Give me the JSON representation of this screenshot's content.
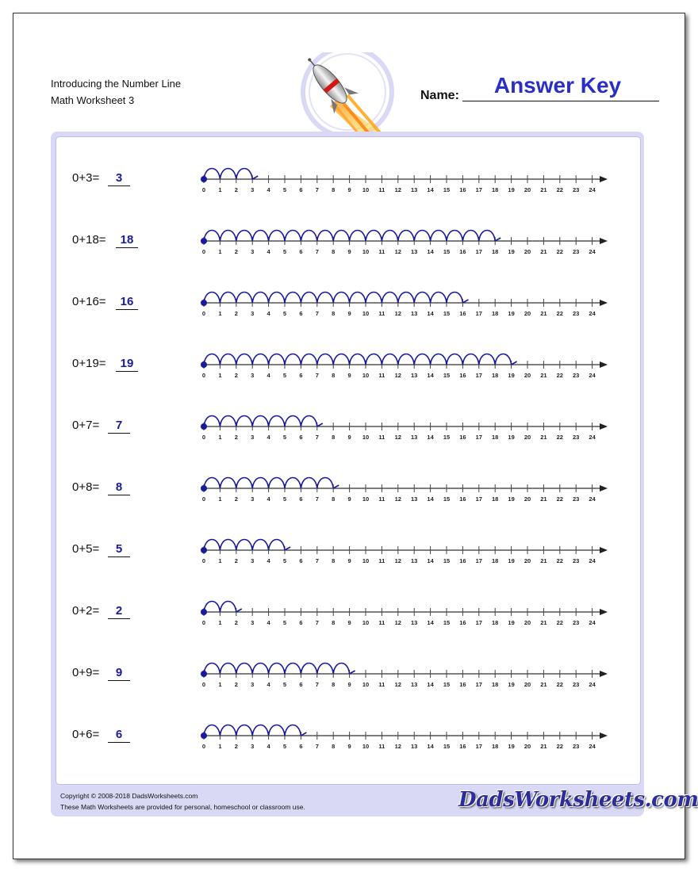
{
  "header": {
    "title": "Introducing the Number Line",
    "subtitle": "Math Worksheet 3",
    "name_label": "Name:",
    "answer_key": "Answer Key"
  },
  "number_line": {
    "min": 0,
    "max": 24,
    "tick_labels": [
      "0",
      "1",
      "2",
      "3",
      "4",
      "5",
      "6",
      "7",
      "8",
      "9",
      "10",
      "11",
      "12",
      "13",
      "14",
      "15",
      "16",
      "17",
      "18",
      "19",
      "20",
      "21",
      "22",
      "23",
      "24"
    ]
  },
  "problems": [
    {
      "equation": "0+3=",
      "answer": "3",
      "hops": 3
    },
    {
      "equation": "0+18=",
      "answer": "18",
      "hops": 18
    },
    {
      "equation": "0+16=",
      "answer": "16",
      "hops": 16
    },
    {
      "equation": "0+19=",
      "answer": "19",
      "hops": 19
    },
    {
      "equation": "0+7=",
      "answer": "7",
      "hops": 7
    },
    {
      "equation": "0+8=",
      "answer": "8",
      "hops": 8
    },
    {
      "equation": "0+5=",
      "answer": "5",
      "hops": 5
    },
    {
      "equation": "0+2=",
      "answer": "2",
      "hops": 2
    },
    {
      "equation": "0+9=",
      "answer": "9",
      "hops": 9
    },
    {
      "equation": "0+6=",
      "answer": "6",
      "hops": 6
    }
  ],
  "footer": {
    "copyright": "Copyright © 2008-2018 DadsWorksheets.com",
    "note": "These Math Worksheets are provided for personal, homeschool or classroom use.",
    "logo": "DadsWorksheets.com"
  },
  "colors": {
    "accent": "#2a2ec9",
    "hop": "#1a1aa0",
    "panel": "#d9d9f6"
  }
}
